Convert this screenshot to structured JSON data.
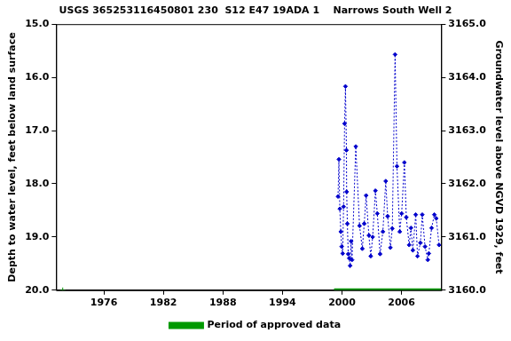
{
  "chart_data": {
    "type": "scatter",
    "title": "USGS 365253116450801 230  S12 E47 19ADA 1    Narrows South Well 2",
    "y_label": "Depth to water level, feet below land surface",
    "y2_label": "Groundwater level above NGVD 1929, feet",
    "xlim": [
      1971.2,
      2010.0
    ],
    "xticks": [
      1976,
      1982,
      1988,
      1994,
      2000,
      2006
    ],
    "ylim": [
      20,
      15
    ],
    "yticks": [
      {
        "value": 15,
        "label": "15.0"
      },
      {
        "value": 16,
        "label": "16.0"
      },
      {
        "value": 17,
        "label": "17.0"
      },
      {
        "value": 18,
        "label": "18.0"
      },
      {
        "value": 19,
        "label": "19.0"
      },
      {
        "value": 20,
        "label": "20.0"
      }
    ],
    "y2lim": [
      3160,
      3165
    ],
    "y2ticks": [
      {
        "value": 3160,
        "label": "3160.0"
      },
      {
        "value": 3161,
        "label": "3161.0"
      },
      {
        "value": 3162,
        "label": "3162.0"
      },
      {
        "value": 3163,
        "label": "3163.0"
      },
      {
        "value": 3164,
        "label": "3164.0"
      },
      {
        "value": 3165,
        "label": "3165.0"
      }
    ],
    "grid": false,
    "legend": "bottom",
    "series": [
      {
        "color": "#0000cc",
        "marker": "diamond",
        "line_style": "dotted",
        "x": [
          1999.6,
          1999.69,
          1999.78,
          1999.88,
          1999.97,
          2000.07,
          2000.16,
          2000.26,
          2000.35,
          2000.45,
          2000.47,
          2000.54,
          2000.63,
          2000.73,
          2000.82,
          2000.92,
          2001.01,
          2001.39,
          2001.77,
          2002.05,
          2002.24,
          2002.43,
          2002.71,
          2002.9,
          2003.09,
          2003.37,
          2003.56,
          2003.84,
          2004.12,
          2004.41,
          2004.6,
          2004.88,
          2005.07,
          2005.35,
          2005.54,
          2005.82,
          2006.01,
          2006.29,
          2006.48,
          2006.77,
          2006.95,
          2007.14,
          2007.43,
          2007.61,
          2007.9,
          2008.09,
          2008.37,
          2008.65,
          2008.75,
          2009.03,
          2009.31,
          2009.5,
          2009.78
        ],
        "values": [
          18.24,
          17.54,
          18.47,
          18.9,
          19.18,
          19.31,
          18.43,
          16.87,
          16.17,
          17.37,
          18.15,
          18.75,
          19.32,
          19.4,
          19.54,
          19.08,
          19.43,
          17.3,
          18.79,
          19.22,
          18.75,
          18.22,
          18.97,
          19.36,
          19.0,
          18.13,
          18.56,
          19.32,
          18.9,
          17.95,
          18.61,
          19.2,
          18.84,
          15.57,
          17.67,
          18.9,
          18.56,
          17.6,
          18.63,
          19.15,
          18.83,
          19.25,
          18.58,
          19.36,
          19.11,
          18.58,
          19.18,
          19.43,
          19.31,
          18.83,
          18.58,
          18.65,
          19.15
        ]
      },
      {
        "color": "#009900",
        "marker": "cross",
        "line_style": "none",
        "x": [
          1971.86
        ],
        "values": [
          20
        ]
      },
      {
        "name": "Period of approved data",
        "color": "#009900",
        "marker": "none",
        "line_style": "solid",
        "x": [
          1999.2,
          2010.0
        ],
        "values": [
          20,
          20
        ]
      }
    ]
  }
}
